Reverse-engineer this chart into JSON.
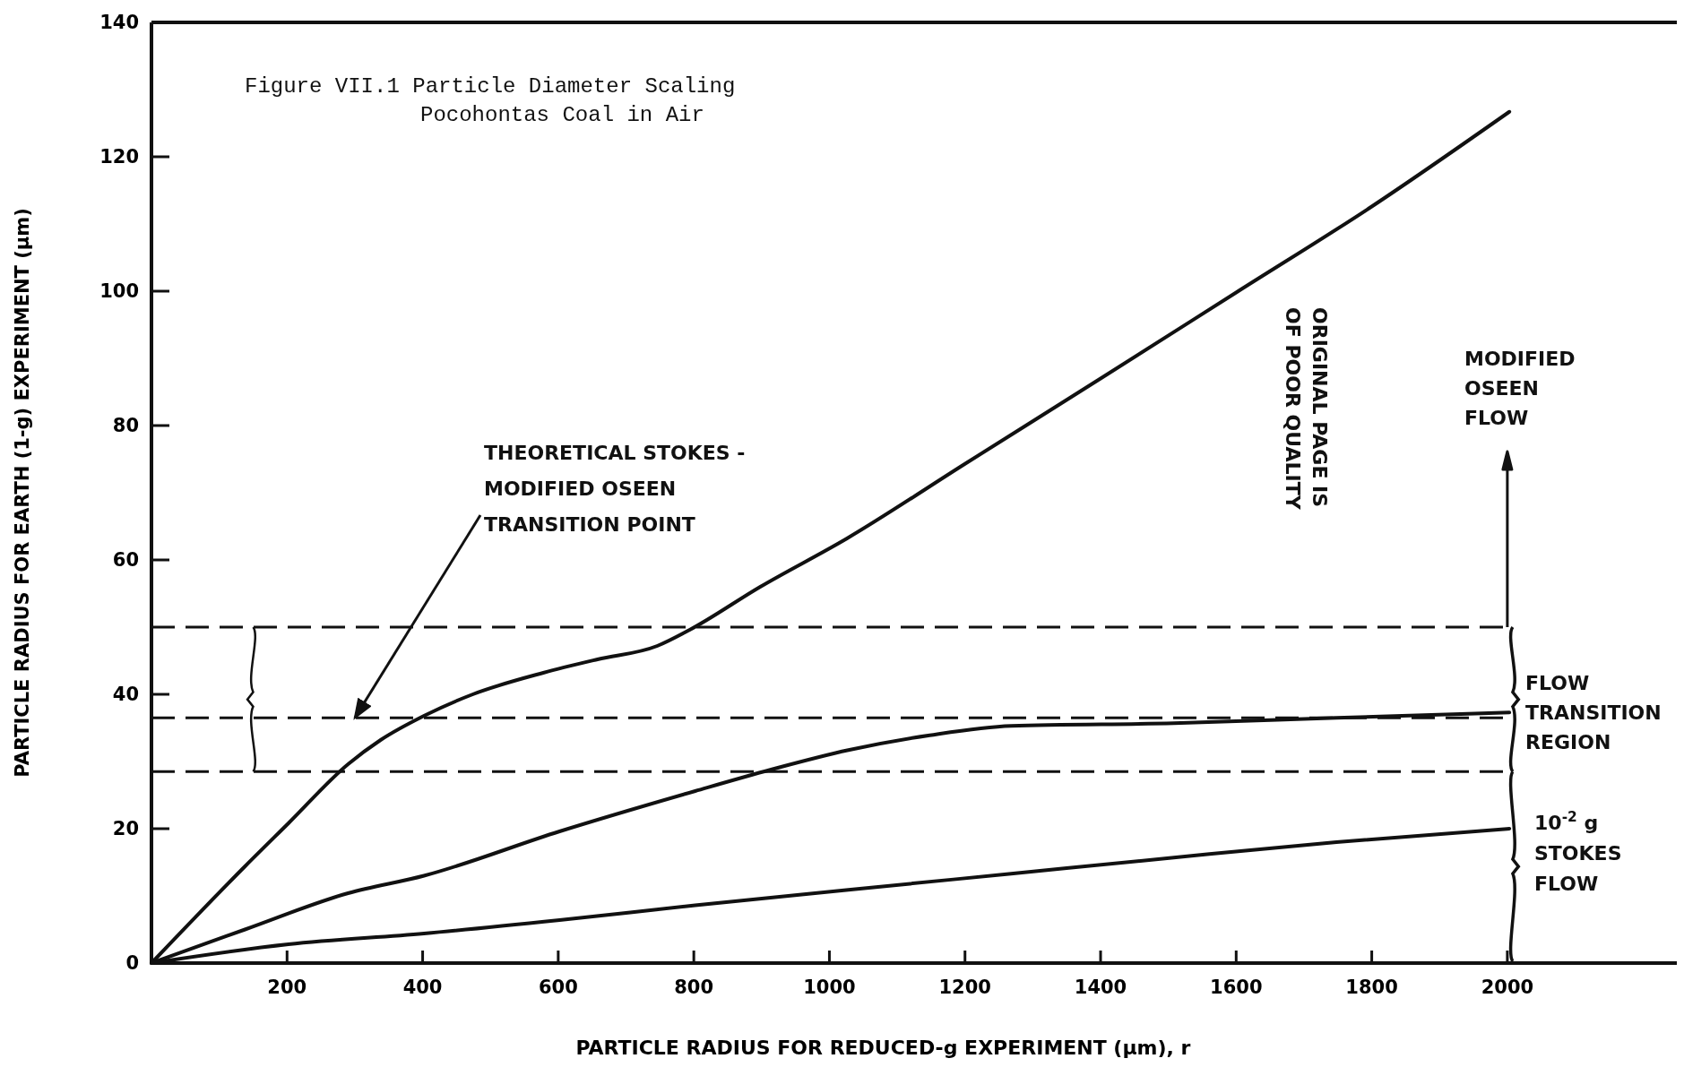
{
  "chart_data": {
    "type": "line",
    "title": "Figure VII.1 Particle Diameter Scaling",
    "subtitle": "Pocohontas Coal in Air",
    "xlabel": "PARTICLE RADIUS FOR REDUCED-g EXPERIMENT (μm), r",
    "ylabel": "PARTICLE RADIUS FOR EARTH (1-g) EXPERIMENT (μm)",
    "xlim": [
      0,
      2250
    ],
    "ylim": [
      0,
      140
    ],
    "xticks": [
      200,
      400,
      600,
      800,
      1000,
      1200,
      1400,
      1600,
      1800,
      2000
    ],
    "yticks": [
      0,
      20,
      40,
      60,
      80,
      100,
      120,
      140
    ],
    "series": [
      {
        "color": "#111111",
        "x": [
          0,
          138,
          202,
          290,
          338,
          402,
          474,
          578,
          658,
          746,
          794,
          898,
          1026,
          1200,
          1400,
          1600,
          1800,
          2003
        ],
        "values": [
          0,
          14.4,
          20.8,
          29.6,
          33.2,
          36.8,
          40,
          43.2,
          45.2,
          47.2,
          49.6,
          56,
          63.2,
          74.3,
          87,
          99.8,
          112.6,
          126.7
        ]
      },
      {
        "color": "#111111",
        "x": [
          0,
          138,
          290,
          402,
          602,
          802,
          914,
          1028,
          1148,
          1268,
          1508,
          1748,
          2003
        ],
        "values": [
          0,
          5,
          10.4,
          13,
          19.6,
          25.6,
          28.8,
          31.7,
          33.9,
          35.3,
          35.7,
          36.5,
          37.3
        ]
      },
      {
        "color": "#111111",
        "x": [
          0,
          202,
          402,
          602,
          802,
          1028,
          1268,
          1508,
          1748,
          2003
        ],
        "values": [
          0,
          2.8,
          4.4,
          6.4,
          8.6,
          10.9,
          13.3,
          15.7,
          18,
          20
        ]
      }
    ],
    "ref_lines": [
      {
        "axis": "y",
        "value": 50,
        "line_style": "dashed"
      },
      {
        "axis": "y",
        "value": 36.5,
        "line_style": "dashed"
      },
      {
        "axis": "y",
        "value": 28.5,
        "line_style": "dashed"
      }
    ],
    "annotations": [
      {
        "text": "THEORETICAL STOKES - MODIFIED OSEEN TRANSITION POINT",
        "x": 300,
        "y": 36.5
      },
      "MODIFIED OSEEN FLOW",
      "FLOW TRANSITION REGION",
      "10$^{-2}$ g STOKES FLOW",
      "ORIGINAL PAGE IS OF POOR QUALITY"
    ],
    "line_style": "solid",
    "marker": "none"
  }
}
